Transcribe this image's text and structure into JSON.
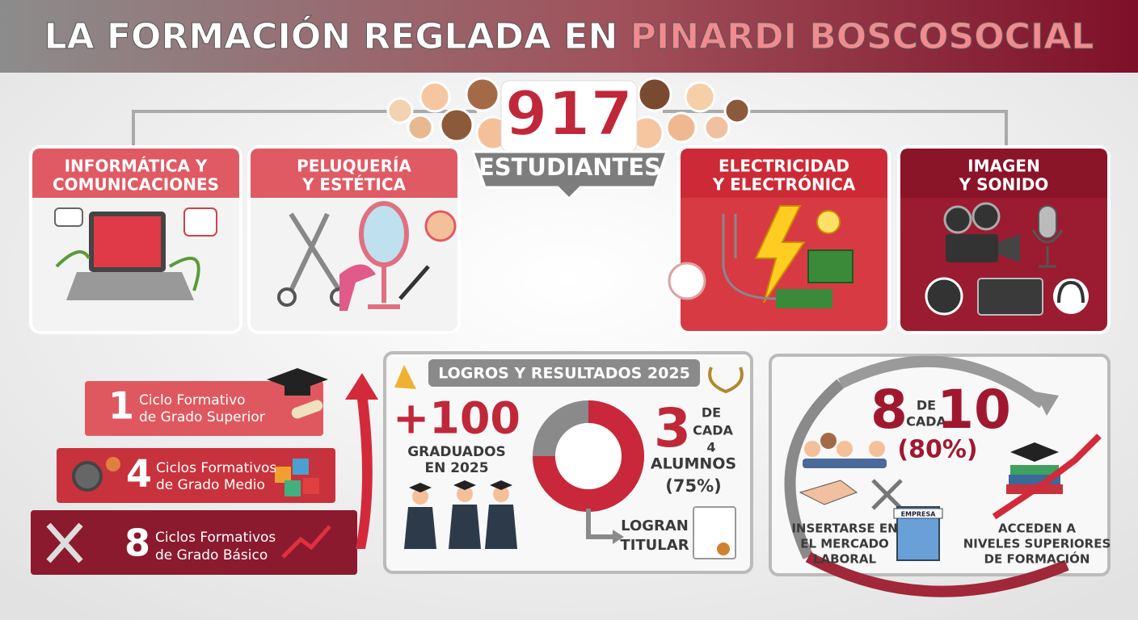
{
  "header": {
    "title_part1": "LA FORMACIÓN REGLADA EN ",
    "title_part2": "PINARDI BOSCOSOCIAL"
  },
  "students": {
    "count": "917",
    "label": "ESTUDIANTES"
  },
  "families": [
    {
      "lines": [
        "INFORMÁTICA Y",
        "COMUNICACIONES"
      ]
    },
    {
      "lines": [
        "PELUQUERÍA",
        "Y ESTÉTICA"
      ]
    },
    {
      "lines": [
        "ELECTRICIDAD",
        "Y ELECTRÓNICA"
      ]
    },
    {
      "lines": [
        "IMAGEN",
        "Y SONIDO"
      ]
    }
  ],
  "cycles": [
    {
      "count": "1",
      "lines": [
        "Ciclo Formativo",
        "de Grado Superior"
      ]
    },
    {
      "count": "4",
      "lines": [
        "Ciclos Formativos",
        "de Grado Medio"
      ]
    },
    {
      "count": "8",
      "lines": [
        "Ciclos Formativos",
        "de Grado Básico"
      ]
    }
  ],
  "achievements": {
    "title": "LOGROS Y RESULTADOS 2025",
    "graduates": "+100",
    "graduates_lines": [
      "GRADUADOS",
      "EN 2025"
    ],
    "ratio_num": "3",
    "ratio_de": "DE",
    "ratio_cada": "CADA",
    "ratio_den": "4",
    "ratio_who": "ALUMNOS",
    "donut": {
      "value": 75,
      "label": "(75%)"
    },
    "outcome_lines": [
      "LOGRAN",
      "TITULAR"
    ]
  },
  "employment": {
    "num": "8",
    "de": "DE",
    "cada": "CADA",
    "den": "10",
    "percent": "(80%)",
    "left_lines": [
      "INSERTARSE EN",
      "EL MERCADO",
      "LABORAL"
    ],
    "building_sign": "EMPRESA",
    "right_lines": [
      "ACCEDEN A",
      "NIVELES SUPERIORES",
      "DE FORMACIÓN"
    ]
  }
}
